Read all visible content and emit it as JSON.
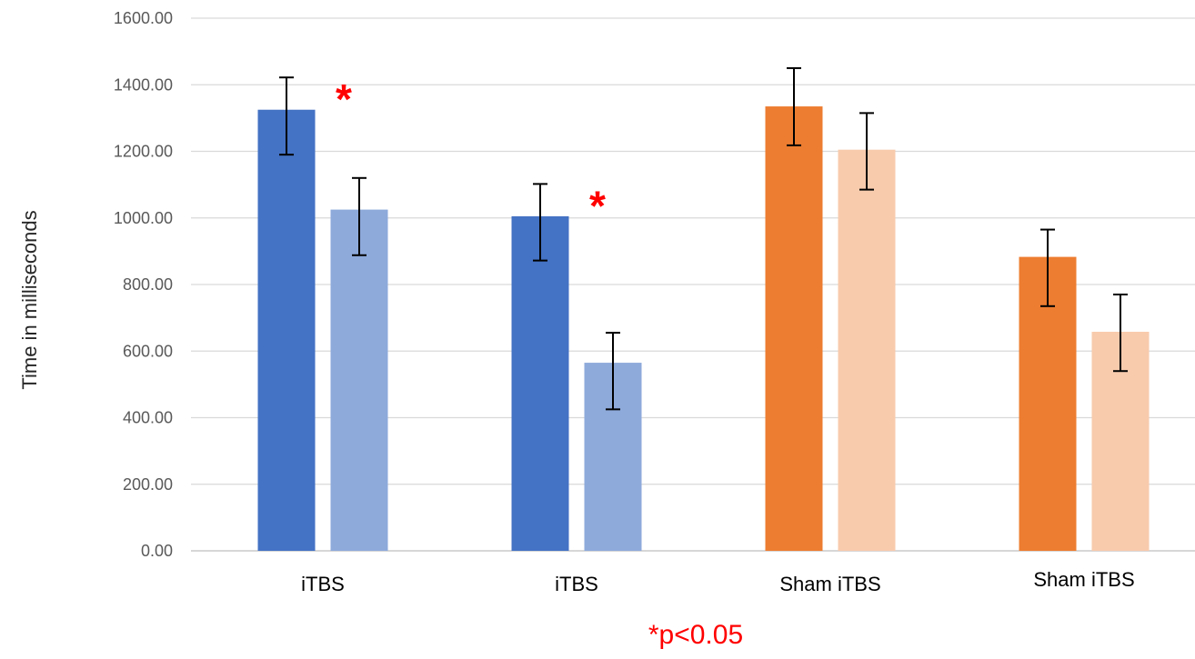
{
  "chart_data": {
    "type": "bar",
    "categories": [
      "iTBS",
      "iTBS",
      "Sham iTBS",
      "Sham iTBS"
    ],
    "series": [
      {
        "values": [
          1325,
          1005,
          1335,
          883
        ],
        "errors": [
          [
            1190,
            1422
          ],
          [
            872,
            1102
          ],
          [
            1218,
            1450
          ],
          [
            735,
            965
          ]
        ],
        "colors": [
          "#4472c4",
          "#4472c4",
          "#ed7d31",
          "#ed7d31"
        ]
      },
      {
        "values": [
          1025,
          565,
          1205,
          658
        ],
        "errors": [
          [
            888,
            1120
          ],
          [
            425,
            655
          ],
          [
            1085,
            1315
          ],
          [
            540,
            770
          ]
        ],
        "colors": [
          "#8eaadb",
          "#8eaadb",
          "#f8cbad",
          "#f8cbad"
        ]
      }
    ],
    "ylabel": "Time in milliseconds",
    "ylim": [
      0,
      1600
    ],
    "yticks": [
      "0.00",
      "200.00",
      "400.00",
      "600.00",
      "800.00",
      "1000.00",
      "1200.00",
      "1400.00",
      "1600.00"
    ],
    "grid": true,
    "annotations": [
      {
        "text": "*",
        "category_index": 0
      },
      {
        "text": "*",
        "category_index": 1
      }
    ],
    "footnote": "*p<0.05"
  }
}
